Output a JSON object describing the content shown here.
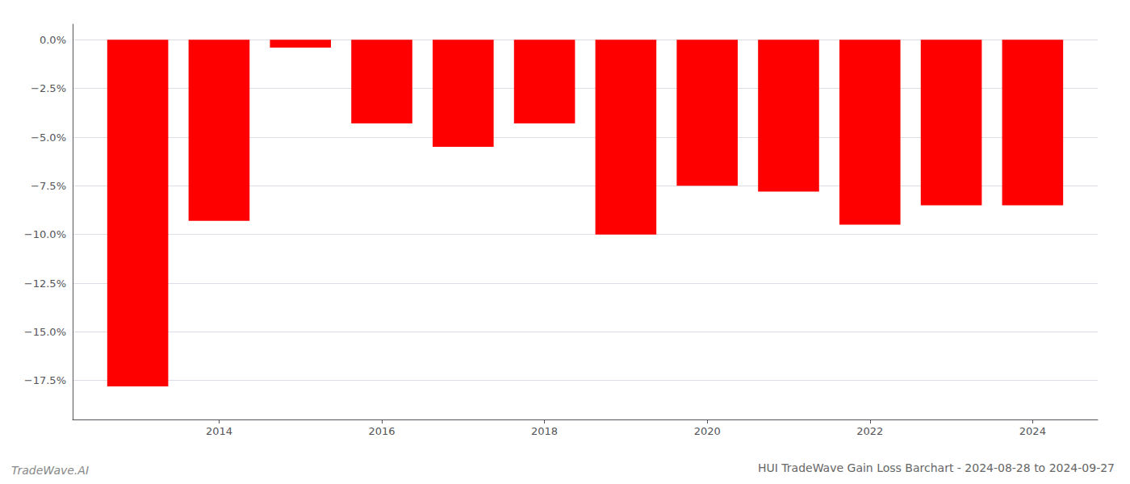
{
  "chart_data": {
    "type": "bar",
    "title": "HUI TradeWave Gain Loss Barchart - 2024-08-28 to 2024-09-27",
    "annotations": [
      "TradeWave.AI"
    ],
    "x": [
      2013,
      2014,
      2015,
      2016,
      2017,
      2018,
      2019,
      2020,
      2021,
      2022,
      2023,
      2024
    ],
    "values": [
      -17.8,
      -9.3,
      -0.4,
      -4.3,
      -5.5,
      -4.3,
      -10.0,
      -7.5,
      -7.8,
      -9.5,
      -8.5,
      -8.5
    ],
    "color": "#ff0000",
    "xlim": [
      2012.2,
      2024.8
    ],
    "xticks": [
      2014,
      2016,
      2018,
      2020,
      2022,
      2024
    ],
    "ylim": [
      -19.5,
      0.8
    ],
    "yticks": [
      {
        "value": 0.0,
        "label": "0.0%"
      },
      {
        "value": -2.5,
        "label": "−2.5%"
      },
      {
        "value": -5.0,
        "label": "−5.0%"
      },
      {
        "value": -7.5,
        "label": "−7.5%"
      },
      {
        "value": -10.0,
        "label": "−10.0%"
      },
      {
        "value": -12.5,
        "label": "−12.5%"
      },
      {
        "value": -15.0,
        "label": "−15.0%"
      },
      {
        "value": -17.5,
        "label": "−17.5%"
      }
    ],
    "grid": true
  }
}
